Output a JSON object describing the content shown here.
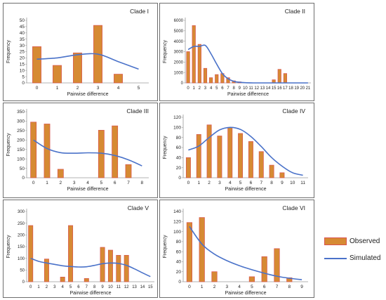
{
  "colors": {
    "bar_fill": "#d68a33",
    "bar_edge": "#d9534f",
    "line": "#4a72c9"
  },
  "legend": {
    "observed_label": "Observed",
    "simulated_label": "Simulated"
  },
  "chart_data": [
    {
      "type": "bar",
      "title": "Clade I",
      "xlabel": "Pairwise difference",
      "ylabel": "Frequency",
      "categories": [
        "0",
        "1",
        "2",
        "3",
        "4",
        "5"
      ],
      "ylim": [
        0,
        50
      ],
      "yticks": [
        0,
        5,
        10,
        15,
        20,
        25,
        30,
        35,
        40,
        45,
        50
      ],
      "series": [
        {
          "name": "Observed",
          "values": [
            29,
            14,
            24,
            46,
            7,
            0
          ]
        },
        {
          "name": "Simulated",
          "kind": "line",
          "values": [
            19,
            20,
            22.5,
            23,
            17,
            11
          ]
        }
      ]
    },
    {
      "type": "bar",
      "title": "Clade II",
      "xlabel": "Pairwise difference",
      "ylabel": "Frequency",
      "categories": [
        "0",
        "1",
        "2",
        "3",
        "4",
        "5",
        "6",
        "7",
        "8",
        "9",
        "10",
        "11",
        "12",
        "13",
        "14",
        "15",
        "16",
        "17",
        "18",
        "19",
        "20",
        "21"
      ],
      "ylim": [
        0,
        6000
      ],
      "yticks": [
        0,
        1000,
        2000,
        3000,
        4000,
        5000,
        6000
      ],
      "series": [
        {
          "name": "Observed",
          "values": [
            3000,
            5500,
            3700,
            1400,
            500,
            800,
            900,
            500,
            200,
            100,
            0,
            0,
            0,
            0,
            0,
            300,
            1300,
            900,
            0,
            0,
            0,
            0
          ]
        },
        {
          "name": "Simulated",
          "kind": "line",
          "values": [
            3200,
            3500,
            3500,
            3600,
            2800,
            1800,
            900,
            400,
            150,
            60,
            20,
            5,
            0,
            0,
            0,
            0,
            0,
            0,
            0,
            0,
            0,
            0
          ]
        }
      ]
    },
    {
      "type": "bar",
      "title": "Clade III",
      "xlabel": "Pairwise difference",
      "ylabel": "Frequency",
      "categories": [
        "0",
        "1",
        "2",
        "3",
        "4",
        "5",
        "6",
        "7",
        "8"
      ],
      "ylim": [
        0,
        350
      ],
      "yticks": [
        0,
        50,
        100,
        150,
        200,
        250,
        300,
        350
      ],
      "series": [
        {
          "name": "Observed",
          "values": [
            295,
            285,
            45,
            0,
            0,
            252,
            275,
            70,
            0
          ]
        },
        {
          "name": "Simulated",
          "kind": "line",
          "values": [
            200,
            155,
            133,
            130,
            132,
            130,
            118,
            95,
            63
          ]
        }
      ]
    },
    {
      "type": "bar",
      "title": "Clade IV",
      "xlabel": "Pairwise difference",
      "ylabel": "Frequency",
      "categories": [
        "0",
        "1",
        "2",
        "3",
        "4",
        "5",
        "6",
        "7",
        "8",
        "9",
        "10",
        "11"
      ],
      "ylim": [
        0,
        120
      ],
      "yticks": [
        0,
        20,
        40,
        60,
        80,
        100,
        120
      ],
      "series": [
        {
          "name": "Observed",
          "values": [
            40,
            86,
            105,
            83,
            100,
            88,
            72,
            52,
            25,
            10,
            0,
            0
          ]
        },
        {
          "name": "Simulated",
          "kind": "line",
          "values": [
            55,
            63,
            80,
            95,
            100,
            96,
            82,
            62,
            40,
            23,
            10,
            5
          ]
        }
      ]
    },
    {
      "type": "bar",
      "title": "Clade V",
      "xlabel": "Pairwise difference",
      "ylabel": "Frequency",
      "categories": [
        "0",
        "1",
        "2",
        "3",
        "4",
        "5",
        "6",
        "7",
        "8",
        "9",
        "10",
        "11",
        "12",
        "13",
        "14",
        "15"
      ],
      "ylim": [
        0,
        300
      ],
      "yticks": [
        0,
        50,
        100,
        150,
        200,
        250,
        300
      ],
      "series": [
        {
          "name": "Observed",
          "values": [
            240,
            0,
            97,
            0,
            20,
            240,
            0,
            14,
            0,
            147,
            135,
            113,
            113,
            0,
            0,
            0
          ]
        },
        {
          "name": "Simulated",
          "kind": "line",
          "values": [
            100,
            87,
            80,
            74,
            68,
            65,
            63,
            64,
            70,
            77,
            80,
            78,
            70,
            55,
            38,
            22
          ]
        }
      ]
    },
    {
      "type": "bar",
      "title": "Clade VI",
      "xlabel": "Pairwise difference",
      "ylabel": "Frequency",
      "categories": [
        "0",
        "1",
        "2",
        "3",
        "4",
        "5",
        "6",
        "7",
        "8",
        "9"
      ],
      "ylim": [
        0,
        140
      ],
      "yticks": [
        0,
        20,
        40,
        60,
        80,
        100,
        120,
        140
      ],
      "series": [
        {
          "name": "Observed",
          "values": [
            118,
            128,
            20,
            0,
            0,
            10,
            50,
            66,
            8,
            0
          ]
        },
        {
          "name": "Simulated",
          "kind": "line",
          "values": [
            110,
            75,
            55,
            42,
            32,
            24,
            17,
            11,
            7,
            4
          ]
        }
      ]
    }
  ]
}
